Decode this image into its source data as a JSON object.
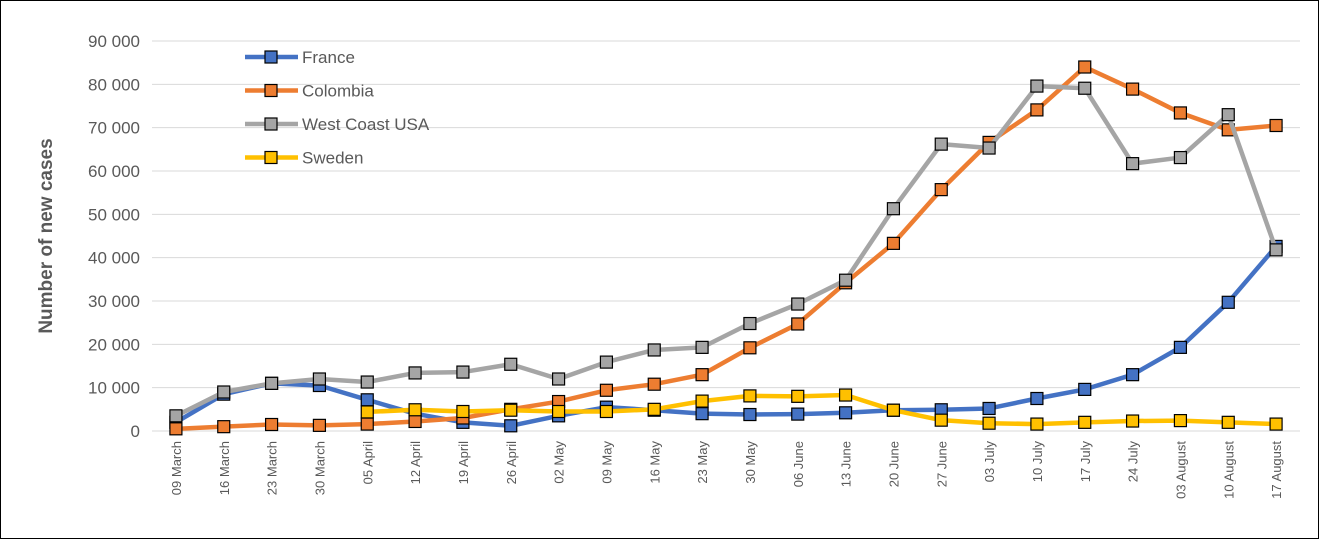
{
  "chart_data": {
    "type": "line",
    "title": "",
    "xlabel": "",
    "ylabel": "Number of new cases",
    "ylim": [
      0,
      90000
    ],
    "yticks": [
      0,
      10000,
      20000,
      30000,
      40000,
      50000,
      60000,
      70000,
      80000,
      90000
    ],
    "ytick_labels": [
      "0",
      "10 000",
      "20 000",
      "30 000",
      "40 000",
      "50 000",
      "60 000",
      "70 000",
      "80 000",
      "90 000"
    ],
    "grid": "horizontal",
    "legend_position": "top-left",
    "categories": [
      "09 March",
      "16 March",
      "23 March",
      "30 March",
      "05 April",
      "12 April",
      "19 April",
      "26 April",
      "02 May",
      "09 May",
      "16 May",
      "23 May",
      "30 May",
      "06 June",
      "13 June",
      "20 June",
      "27 June",
      "03 July",
      "10 July",
      "17 July",
      "24 July",
      "03 August",
      "10 August",
      "17 August"
    ],
    "series": [
      {
        "name": "France",
        "color": "#4472C4",
        "values": [
          2000,
          8500,
          11000,
          10500,
          7200,
          4000,
          2000,
          1200,
          3500,
          5500,
          4800,
          4000,
          3800,
          3900,
          4200,
          4800,
          4900,
          5200,
          7500,
          9600,
          13000,
          19300,
          29700,
          42600
        ]
      },
      {
        "name": "Colombia",
        "color": "#ED7D31",
        "values": [
          500,
          1000,
          1500,
          1300,
          1600,
          2200,
          3000,
          5000,
          6800,
          9400,
          10800,
          13000,
          19200,
          24700,
          34200,
          43300,
          55700,
          66600,
          74100,
          84000,
          78900,
          73400,
          69500,
          70500
        ]
      },
      {
        "name": "West Coast USA",
        "color": "#A5A5A5",
        "values": [
          3500,
          9000,
          11000,
          12000,
          11300,
          13400,
          13600,
          15400,
          12000,
          15900,
          18700,
          19300,
          24800,
          29300,
          34800,
          51300,
          66200,
          65300,
          79600,
          79100,
          61700,
          63100,
          73000,
          41800
        ]
      },
      {
        "name": "Sweden",
        "color": "#FFC000",
        "values": [
          null,
          null,
          null,
          null,
          4400,
          4900,
          4500,
          4800,
          4500,
          4500,
          5000,
          6900,
          8100,
          8000,
          8300,
          4800,
          2500,
          1800,
          1600,
          2000,
          2300,
          2400,
          2000,
          1600
        ]
      }
    ]
  }
}
